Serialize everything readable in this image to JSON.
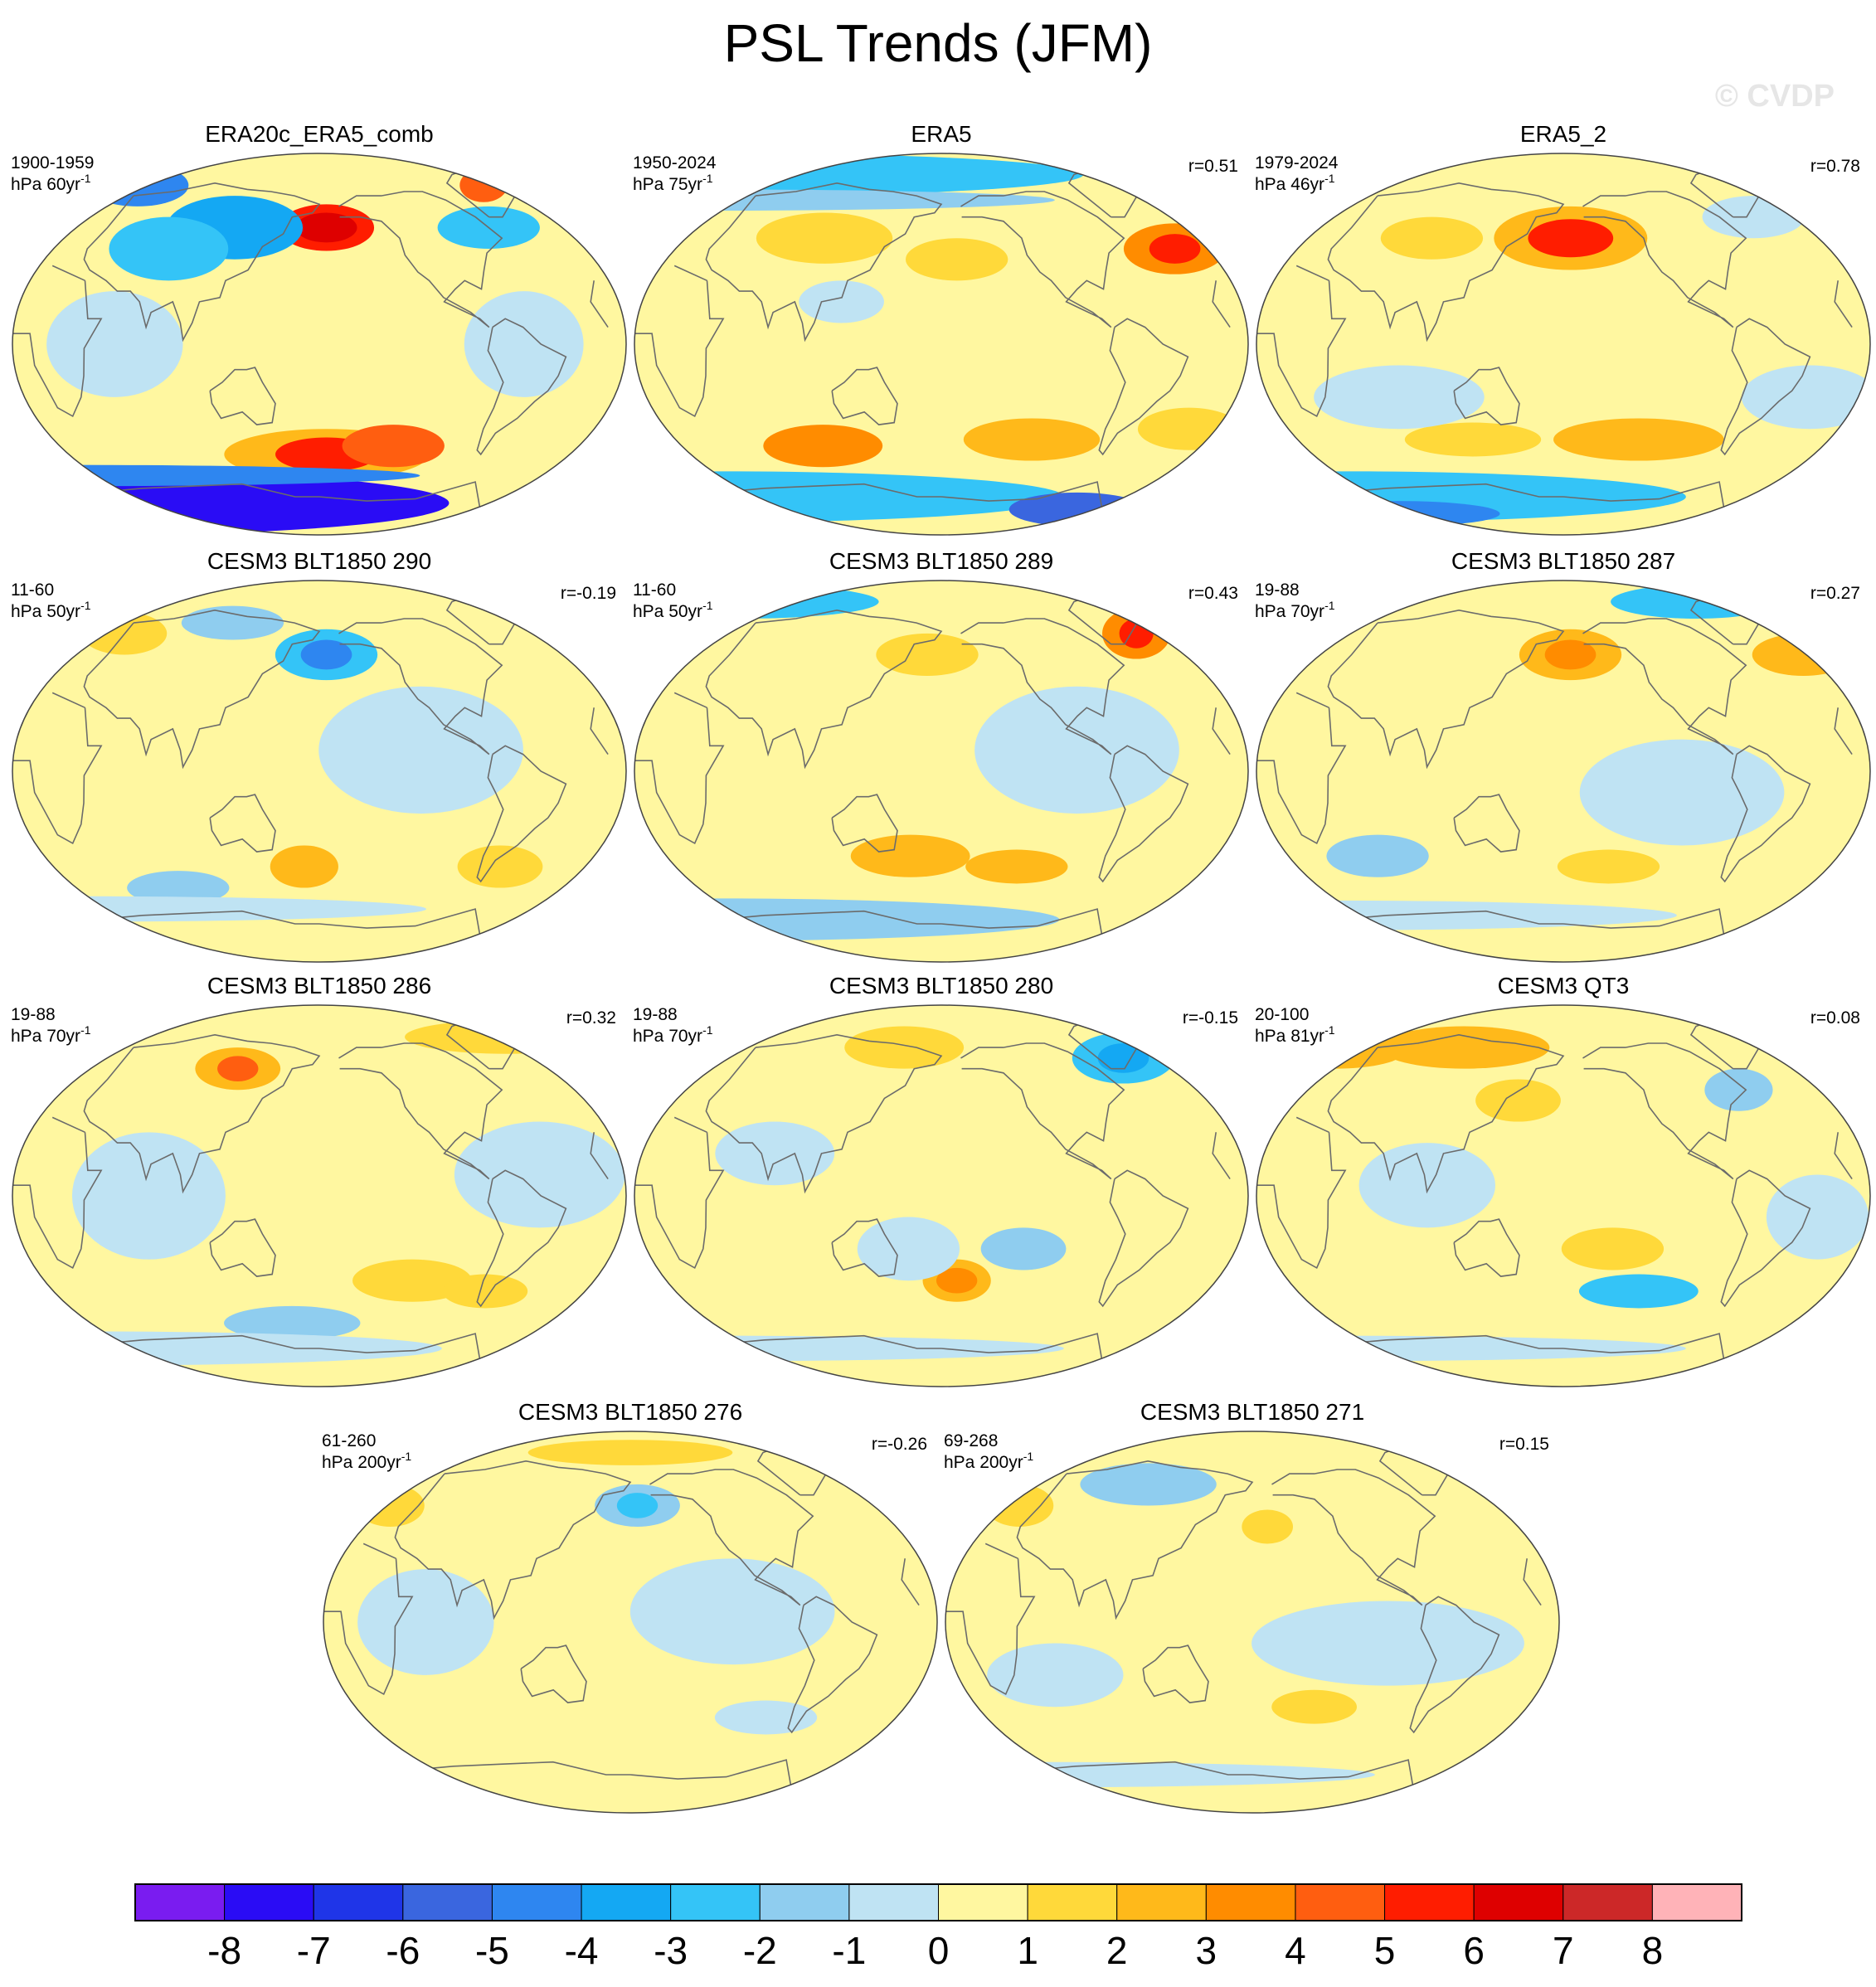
{
  "title": "PSL Trends (JFM)",
  "watermark": "© CVDP",
  "chart_data": {
    "type": "heatmap",
    "projection": "Robinson-like global map panels",
    "variable": "Sea level pressure trend",
    "season": "JFM",
    "colorbar": {
      "tick_labels": [
        "-8",
        "-7",
        "-6",
        "-5",
        "-4",
        "-3",
        "-2",
        "-1",
        "0",
        "1",
        "2",
        "3",
        "4",
        "5",
        "6",
        "7",
        "8"
      ],
      "colors": [
        "#7a1cf0",
        "#2a0cf5",
        "#1f35e8",
        "#3a66df",
        "#2e86f0",
        "#14a8f3",
        "#34c4f7",
        "#8fcdef",
        "#bfe3f3",
        "#fff7a0",
        "#ffd93a",
        "#ffb91a",
        "#ff8c00",
        "#ff5e10",
        "#ff1d00",
        "#de0000",
        "#cc2828",
        "#ffb3b8"
      ]
    },
    "panels": [
      {
        "title": "ERA20c_ERA5_comb",
        "period": "1900-1959",
        "units": "hPa 60yr",
        "exp": "-1",
        "r": "",
        "blobs": [
          {
            "lon": -175,
            "lat": 55,
            "rx": 28,
            "ry": 11,
            "level": 6
          },
          {
            "lon": -175,
            "lat": 55,
            "rx": 18,
            "ry": 7,
            "level": 7
          },
          {
            "lon": -40,
            "lat": 75,
            "rx": 14,
            "ry": 8,
            "level": 5
          },
          {
            "lon": 120,
            "lat": 55,
            "rx": 40,
            "ry": 15,
            "level": -4
          },
          {
            "lon": 25,
            "lat": 75,
            "rx": 30,
            "ry": 10,
            "level": -5
          },
          {
            "lon": -60,
            "lat": 55,
            "rx": 30,
            "ry": 10,
            "level": -3
          },
          {
            "lon": 80,
            "lat": 45,
            "rx": 35,
            "ry": 15,
            "level": -3
          },
          {
            "lon": -175,
            "lat": -52,
            "rx": 60,
            "ry": 12,
            "level": 3
          },
          {
            "lon": -175,
            "lat": -52,
            "rx": 30,
            "ry": 8,
            "level": 6
          },
          {
            "lon": -130,
            "lat": -48,
            "rx": 30,
            "ry": 10,
            "level": 5
          },
          {
            "lon": 0,
            "lat": -75,
            "rx": 200,
            "ry": 15,
            "level": -8
          },
          {
            "lon": 0,
            "lat": -62,
            "rx": 200,
            "ry": 5,
            "level": -5
          },
          {
            "lon": 60,
            "lat": 0,
            "rx": 40,
            "ry": 25,
            "level": -1
          },
          {
            "lon": -60,
            "lat": 0,
            "rx": 35,
            "ry": 25,
            "level": -1
          }
        ]
      },
      {
        "title": "ERA5",
        "period": "1950-2024",
        "units": "hPa 75yr",
        "exp": "-1",
        "r": "r=0.51",
        "blobs": [
          {
            "lon": 0,
            "lat": 80,
            "rx": 200,
            "ry": 10,
            "level": -3
          },
          {
            "lon": 0,
            "lat": 68,
            "rx": 200,
            "ry": 5,
            "level": -2
          },
          {
            "lon": -25,
            "lat": 45,
            "rx": 30,
            "ry": 12,
            "level": 4
          },
          {
            "lon": -25,
            "lat": 45,
            "rx": 15,
            "ry": 7,
            "level": 6
          },
          {
            "lon": 100,
            "lat": 50,
            "rx": 40,
            "ry": 12,
            "level": 2
          },
          {
            "lon": -170,
            "lat": 40,
            "rx": 30,
            "ry": 10,
            "level": 2
          },
          {
            "lon": 100,
            "lat": -48,
            "rx": 35,
            "ry": 10,
            "level": 4
          },
          {
            "lon": -120,
            "lat": -45,
            "rx": 40,
            "ry": 10,
            "level": 3
          },
          {
            "lon": -20,
            "lat": -40,
            "rx": 30,
            "ry": 10,
            "level": 2
          },
          {
            "lon": 0,
            "lat": -72,
            "rx": 200,
            "ry": 12,
            "level": -3
          },
          {
            "lon": -60,
            "lat": -78,
            "rx": 40,
            "ry": 8,
            "level": -6
          },
          {
            "lon": 120,
            "lat": 20,
            "rx": 25,
            "ry": 10,
            "level": -1
          }
        ]
      },
      {
        "title": "ERA5_2",
        "period": "1979-2024",
        "units": "hPa 46yr",
        "exp": "-1",
        "r": "r=0.78",
        "blobs": [
          {
            "lon": -175,
            "lat": 50,
            "rx": 45,
            "ry": 15,
            "level": 3
          },
          {
            "lon": -175,
            "lat": 50,
            "rx": 25,
            "ry": 9,
            "level": 6
          },
          {
            "lon": 90,
            "lat": 50,
            "rx": 30,
            "ry": 10,
            "level": 2
          },
          {
            "lon": -40,
            "lat": 60,
            "rx": 30,
            "ry": 10,
            "level": -1
          },
          {
            "lon": -130,
            "lat": -45,
            "rx": 50,
            "ry": 10,
            "level": 3
          },
          {
            "lon": 120,
            "lat": -45,
            "rx": 40,
            "ry": 8,
            "level": 2
          },
          {
            "lon": 0,
            "lat": -72,
            "rx": 200,
            "ry": 12,
            "level": -3
          },
          {
            "lon": 30,
            "lat": -80,
            "rx": 60,
            "ry": 6,
            "level": -5
          },
          {
            "lon": 80,
            "lat": -25,
            "rx": 50,
            "ry": 15,
            "level": -1
          },
          {
            "lon": -30,
            "lat": -25,
            "rx": 40,
            "ry": 15,
            "level": -1
          }
        ]
      },
      {
        "title": "CESM3 BLT1850 290",
        "period": "11-60",
        "units": "hPa 50yr",
        "exp": "-1",
        "r": "r=-0.19",
        "blobs": [
          {
            "lon": -175,
            "lat": 55,
            "rx": 30,
            "ry": 12,
            "level": -3
          },
          {
            "lon": -175,
            "lat": 55,
            "rx": 15,
            "ry": 7,
            "level": -5
          },
          {
            "lon": 30,
            "lat": 65,
            "rx": 25,
            "ry": 10,
            "level": 2
          },
          {
            "lon": -120,
            "lat": 10,
            "rx": 60,
            "ry": 30,
            "level": -1
          },
          {
            "lon": 170,
            "lat": -45,
            "rx": 20,
            "ry": 10,
            "level": 3
          },
          {
            "lon": 80,
            "lat": -55,
            "rx": 30,
            "ry": 8,
            "level": -2
          },
          {
            "lon": 0,
            "lat": -65,
            "rx": 200,
            "ry": 6,
            "level": -1
          },
          {
            "lon": -60,
            "lat": -45,
            "rx": 25,
            "ry": 10,
            "level": 2
          },
          {
            "lon": 110,
            "lat": 70,
            "rx": 30,
            "ry": 8,
            "level": -2
          }
        ]
      },
      {
        "title": "CESM3 BLT1850 289",
        "period": "11-60",
        "units": "hPa 50yr",
        "exp": "-1",
        "r": "r=0.43",
        "blobs": [
          {
            "lon": -30,
            "lat": 65,
            "rx": 20,
            "ry": 12,
            "level": 4
          },
          {
            "lon": -30,
            "lat": 65,
            "rx": 10,
            "ry": 7,
            "level": 6
          },
          {
            "lon": 0,
            "lat": 80,
            "rx": 80,
            "ry": 8,
            "level": -3
          },
          {
            "lon": 170,
            "lat": 55,
            "rx": 30,
            "ry": 10,
            "level": 2
          },
          {
            "lon": -100,
            "lat": 10,
            "rx": 60,
            "ry": 30,
            "level": -1
          },
          {
            "lon": 160,
            "lat": -40,
            "rx": 35,
            "ry": 10,
            "level": 3
          },
          {
            "lon": -130,
            "lat": -45,
            "rx": 30,
            "ry": 8,
            "level": 3
          },
          {
            "lon": 0,
            "lat": -70,
            "rx": 200,
            "ry": 10,
            "level": -2
          }
        ]
      },
      {
        "title": "CESM3 BLT1850 287",
        "period": "19-88",
        "units": "hPa 70yr",
        "exp": "-1",
        "r": "r=0.27",
        "blobs": [
          {
            "lon": -175,
            "lat": 55,
            "rx": 30,
            "ry": 12,
            "level": 3
          },
          {
            "lon": -175,
            "lat": 55,
            "rx": 15,
            "ry": 7,
            "level": 4
          },
          {
            "lon": -10,
            "lat": 55,
            "rx": 30,
            "ry": 10,
            "level": 3
          },
          {
            "lon": -60,
            "lat": 80,
            "rx": 50,
            "ry": 8,
            "level": -3
          },
          {
            "lon": -110,
            "lat": -10,
            "rx": 60,
            "ry": 25,
            "level": -1
          },
          {
            "lon": 60,
            "lat": -40,
            "rx": 30,
            "ry": 10,
            "level": -2
          },
          {
            "lon": 0,
            "lat": -68,
            "rx": 200,
            "ry": 7,
            "level": -1
          },
          {
            "lon": -150,
            "lat": -45,
            "rx": 30,
            "ry": 8,
            "level": 2
          }
        ]
      },
      {
        "title": "CESM3 BLT1850 286",
        "period": "19-88",
        "units": "hPa 70yr",
        "exp": "-1",
        "r": "r=0.32",
        "blobs": [
          {
            "lon": 120,
            "lat": 60,
            "rx": 25,
            "ry": 10,
            "level": 3
          },
          {
            "lon": 120,
            "lat": 60,
            "rx": 12,
            "ry": 6,
            "level": 5
          },
          {
            "lon": -20,
            "lat": 75,
            "rx": 60,
            "ry": 8,
            "level": 2
          },
          {
            "lon": 80,
            "lat": 0,
            "rx": 45,
            "ry": 30,
            "level": -1
          },
          {
            "lon": -50,
            "lat": 10,
            "rx": 50,
            "ry": 25,
            "level": -1
          },
          {
            "lon": -120,
            "lat": -40,
            "rx": 35,
            "ry": 10,
            "level": 2
          },
          {
            "lon": 160,
            "lat": -60,
            "rx": 40,
            "ry": 8,
            "level": -2
          },
          {
            "lon": 0,
            "lat": -72,
            "rx": 200,
            "ry": 8,
            "level": -1
          },
          {
            "lon": -70,
            "lat": -45,
            "rx": 25,
            "ry": 8,
            "level": 2
          }
        ]
      },
      {
        "title": "CESM3 BLT1850 280",
        "period": "19-88",
        "units": "hPa 70yr",
        "exp": "-1",
        "r": "r=-0.15",
        "blobs": [
          {
            "lon": -40,
            "lat": 65,
            "rx": 30,
            "ry": 12,
            "level": -3
          },
          {
            "lon": -40,
            "lat": 65,
            "rx": 15,
            "ry": 7,
            "level": -4
          },
          {
            "lon": 150,
            "lat": 70,
            "rx": 35,
            "ry": 10,
            "level": 2
          },
          {
            "lon": -170,
            "lat": -40,
            "rx": 20,
            "ry": 10,
            "level": 3
          },
          {
            "lon": -170,
            "lat": -40,
            "rx": 12,
            "ry": 6,
            "level": 4
          },
          {
            "lon": 160,
            "lat": -25,
            "rx": 30,
            "ry": 15,
            "level": -1
          },
          {
            "lon": -130,
            "lat": -25,
            "rx": 25,
            "ry": 10,
            "level": -2
          },
          {
            "lon": 80,
            "lat": 20,
            "rx": 35,
            "ry": 15,
            "level": -1
          },
          {
            "lon": 0,
            "lat": -72,
            "rx": 200,
            "ry": 6,
            "level": -1
          }
        ]
      },
      {
        "title": "CESM3 QT3",
        "period": "20-100",
        "units": "hPa 81yr",
        "exp": "-1",
        "r": "r=0.08",
        "blobs": [
          {
            "lon": 100,
            "lat": 70,
            "rx": 50,
            "ry": 10,
            "level": 3
          },
          {
            "lon": 0,
            "lat": 68,
            "rx": 40,
            "ry": 8,
            "level": 3
          },
          {
            "lon": 150,
            "lat": 45,
            "rx": 25,
            "ry": 10,
            "level": 2
          },
          {
            "lon": -60,
            "lat": 50,
            "rx": 20,
            "ry": 10,
            "level": -2
          },
          {
            "lon": -130,
            "lat": -45,
            "rx": 35,
            "ry": 8,
            "level": -3
          },
          {
            "lon": -150,
            "lat": -25,
            "rx": 30,
            "ry": 10,
            "level": 2
          },
          {
            "lon": 100,
            "lat": 5,
            "rx": 40,
            "ry": 20,
            "level": -1
          },
          {
            "lon": -30,
            "lat": -10,
            "rx": 30,
            "ry": 20,
            "level": -1
          },
          {
            "lon": 0,
            "lat": -72,
            "rx": 200,
            "ry": 6,
            "level": -1
          }
        ]
      },
      {
        "title": "CESM3 BLT1850 276",
        "period": "61-260",
        "units": "hPa 200yr",
        "exp": "-1",
        "r": "r=-0.26",
        "blobs": [
          {
            "lon": -175,
            "lat": 55,
            "rx": 25,
            "ry": 10,
            "level": -2
          },
          {
            "lon": -175,
            "lat": 55,
            "rx": 12,
            "ry": 6,
            "level": -3
          },
          {
            "lon": 10,
            "lat": 55,
            "rx": 20,
            "ry": 10,
            "level": 2
          },
          {
            "lon": 180,
            "lat": 80,
            "rx": 60,
            "ry": 6,
            "level": 2
          },
          {
            "lon": -120,
            "lat": 5,
            "rx": 60,
            "ry": 25,
            "level": -1
          },
          {
            "lon": 60,
            "lat": 0,
            "rx": 40,
            "ry": 25,
            "level": -1
          },
          {
            "lon": -90,
            "lat": -45,
            "rx": 30,
            "ry": 8,
            "level": -1
          },
          {
            "lon": 0,
            "lat": -72,
            "rx": 200,
            "ry": 6,
            "level": 1
          }
        ]
      },
      {
        "title": "CESM3 BLT1850 271",
        "period": "69-268",
        "units": "hPa 200yr",
        "exp": "-1",
        "r": "r=0.15",
        "blobs": [
          {
            "lon": 100,
            "lat": 65,
            "rx": 40,
            "ry": 10,
            "level": -2
          },
          {
            "lon": 15,
            "lat": 55,
            "rx": 20,
            "ry": 10,
            "level": 2
          },
          {
            "lon": -170,
            "lat": 45,
            "rx": 15,
            "ry": 8,
            "level": 2
          },
          {
            "lon": -100,
            "lat": -10,
            "rx": 80,
            "ry": 20,
            "level": -1
          },
          {
            "lon": 60,
            "lat": -25,
            "rx": 40,
            "ry": 15,
            "level": -1
          },
          {
            "lon": -140,
            "lat": -40,
            "rx": 25,
            "ry": 8,
            "level": 2
          },
          {
            "lon": 0,
            "lat": -72,
            "rx": 200,
            "ry": 6,
            "level": -1
          }
        ]
      }
    ]
  }
}
